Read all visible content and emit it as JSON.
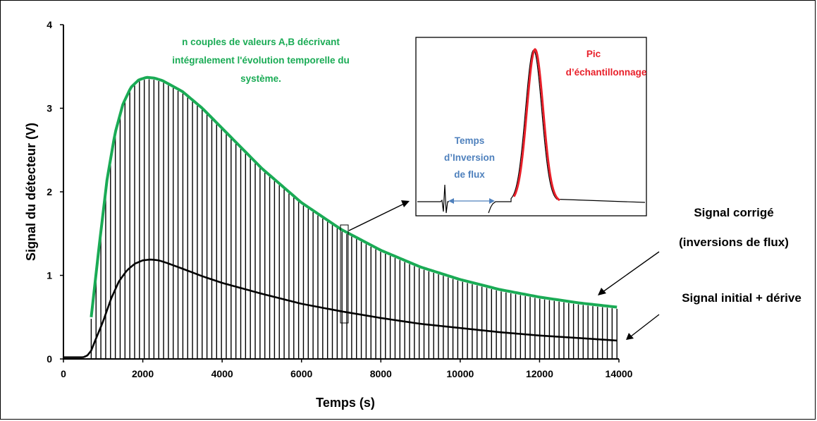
{
  "chart_data": {
    "type": "line",
    "xlabel": "Temps (s)",
    "ylabel": "Signal du détecteur (V)",
    "xlim": [
      0,
      14000
    ],
    "ylim": [
      0,
      4
    ],
    "xticks": [
      "0",
      "2000",
      "4000",
      "6000",
      "8000",
      "10000",
      "12000",
      "14000"
    ],
    "yticks": [
      "0",
      "1",
      "2",
      "3",
      "4"
    ],
    "grid": false,
    "legend": "none",
    "series": [
      {
        "name": "Signal corrigé (inversions de flux)",
        "color": "#1aab55",
        "x": [
          700,
          900,
          1100,
          1300,
          1500,
          1700,
          1900,
          2100,
          2300,
          2500,
          3000,
          3500,
          4000,
          4500,
          5000,
          6000,
          7000,
          8000,
          9000,
          10000,
          11000,
          12000,
          13000,
          13950
        ],
        "y": [
          0.5,
          1.35,
          2.15,
          2.7,
          3.05,
          3.25,
          3.34,
          3.37,
          3.36,
          3.33,
          3.2,
          3.0,
          2.76,
          2.52,
          2.28,
          1.87,
          1.55,
          1.3,
          1.1,
          0.95,
          0.83,
          0.74,
          0.67,
          0.62
        ]
      },
      {
        "name": "Signal initial + dérive",
        "color": "#000000",
        "x": [
          0,
          500,
          600,
          700,
          800,
          1000,
          1200,
          1400,
          1600,
          1800,
          2000,
          2200,
          2400,
          2600,
          3000,
          3500,
          4000,
          5000,
          6000,
          7000,
          8000,
          9000,
          10000,
          11000,
          12000,
          13000,
          13950
        ],
        "y": [
          0.02,
          0.02,
          0.04,
          0.1,
          0.22,
          0.45,
          0.72,
          0.93,
          1.06,
          1.14,
          1.18,
          1.19,
          1.18,
          1.15,
          1.08,
          0.99,
          0.91,
          0.78,
          0.66,
          0.57,
          0.49,
          0.42,
          0.37,
          0.32,
          0.28,
          0.25,
          0.22
        ]
      }
    ],
    "spikes": {
      "count": 110,
      "x_start": 700,
      "x_end": 13950,
      "note_top": "green series",
      "note_bottom": 0
    },
    "annotations": {
      "green_text": "n couples de valeurs A,B décrivant intégralement l'évolution temporelle du système.",
      "label_corrected_1": "Signal corrigé",
      "label_corrected_2": "(inversions de flux)",
      "label_initial": "Signal initial + dérive",
      "inset_time_label": "Temps d’Inversion de flux",
      "inset_peak_label": "Pic d’échantillonnage"
    }
  },
  "colors": {
    "green": "#1aab55",
    "red": "#e8202a",
    "blue": "#4f81bd",
    "black": "#000000"
  }
}
